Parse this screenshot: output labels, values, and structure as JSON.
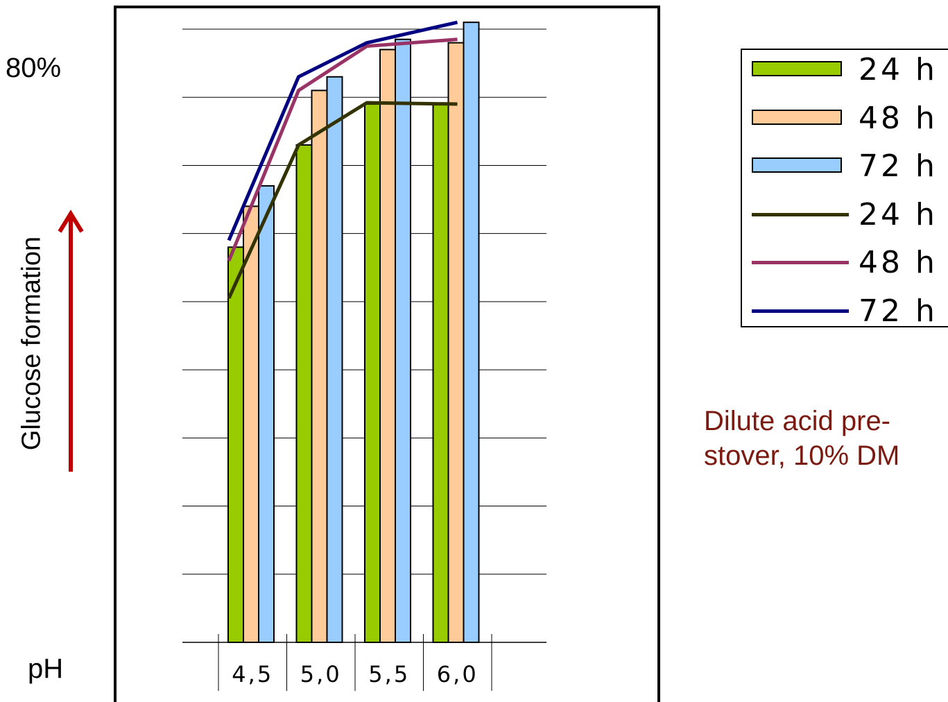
{
  "y_axis": {
    "max_label": "80%",
    "title": "Glucose formation"
  },
  "x_axis": {
    "title": "pH"
  },
  "note": [
    "Dilute acid pre-",
    "stover, 10% DM"
  ],
  "colors": {
    "bar_24h": "#99cc00",
    "bar_48h": "#ffcc99",
    "bar_72h": "#99ccff",
    "line_24h": "#333300",
    "line_48h": "#993366",
    "line_72h": "#000080",
    "arrow": "#c00000",
    "note": "#7b1a10"
  },
  "legend": [
    {
      "label": "24 h",
      "kind": "bar",
      "color": "#99cc00"
    },
    {
      "label": "48 h",
      "kind": "bar",
      "color": "#ffcc99"
    },
    {
      "label": "72 h",
      "kind": "bar",
      "color": "#99ccff"
    },
    {
      "label": "24 h",
      "kind": "line",
      "color": "#333300"
    },
    {
      "label": "48 h",
      "kind": "line",
      "color": "#993366"
    },
    {
      "label": "72 h",
      "kind": "line",
      "color": "#000080"
    }
  ],
  "chart_data": {
    "type": "bar",
    "categories": [
      "4,5",
      "5,0",
      "5,5",
      "6,0"
    ],
    "ylim": [
      0,
      90
    ],
    "ytick_count": 9,
    "series": [
      {
        "name": "24 h",
        "kind": "bar",
        "values": [
          58,
          73,
          79,
          79
        ]
      },
      {
        "name": "48 h",
        "kind": "bar",
        "values": [
          64,
          81,
          87,
          88
        ]
      },
      {
        "name": "72 h",
        "kind": "bar",
        "values": [
          67,
          83,
          88.5,
          91
        ]
      },
      {
        "name": "24 h",
        "kind": "line",
        "values": [
          50.5,
          73,
          79.2,
          79
        ]
      },
      {
        "name": "48 h",
        "kind": "line",
        "values": [
          56,
          81,
          87.5,
          88.5
        ]
      },
      {
        "name": "72 h",
        "kind": "line",
        "values": [
          59,
          83,
          88,
          91
        ]
      }
    ]
  }
}
